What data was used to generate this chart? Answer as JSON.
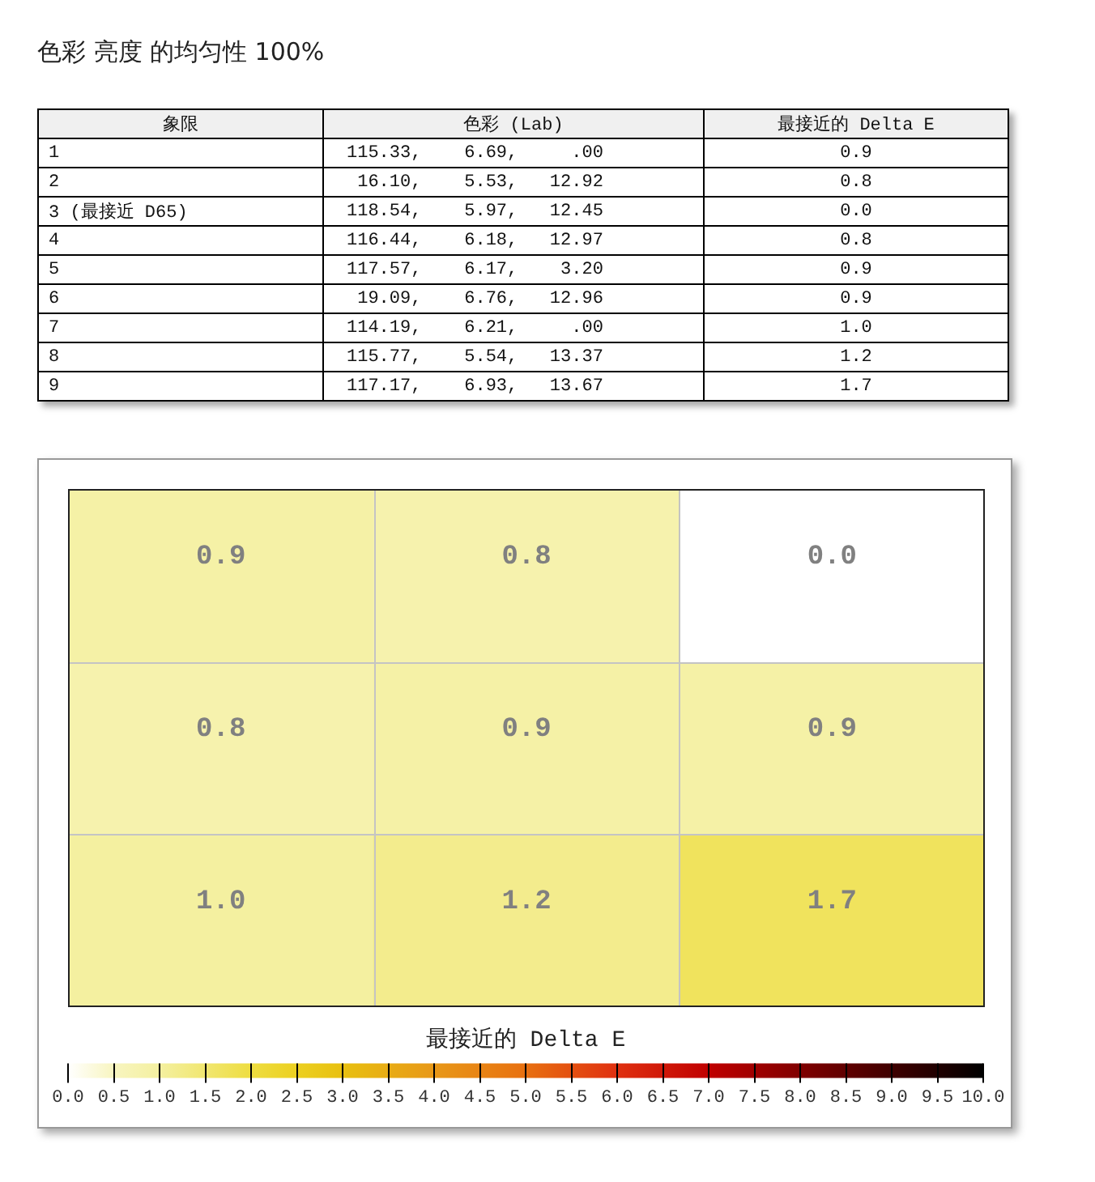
{
  "chart_data": [
    {
      "type": "other",
      "title": "色彩 亮度 的均匀性 100%",
      "annotations": [
        "象限",
        "色彩 (Lab)",
        "最接近的 Delta E",
        "1",
        "115.33,    6.69,     .00",
        "0.9",
        "2",
        " 16.10,    5.53,   12.92",
        "0.8",
        "3 (最接近 D65)",
        "118.54,    5.97,   12.45",
        "0.0",
        "4",
        "116.44,    6.18,   12.97",
        "0.8",
        "5",
        "117.57,    6.17,    3.20",
        "0.9",
        "6",
        " 19.09,    6.76,   12.96",
        "0.9",
        "7",
        "114.19,    6.21,     .00",
        "1.0",
        "8",
        "115.77,    5.54,   13.37",
        "1.2",
        "9",
        "117.17,    6.93,   13.67",
        "1.7"
      ]
    },
    {
      "type": "heatmap",
      "categories": [
        null,
        null,
        null
      ],
      "y_categories": [
        null,
        null,
        null
      ],
      "cells": [
        [
          0.9,
          0.8,
          0.0
        ],
        [
          0.8,
          0.9,
          0.9
        ],
        [
          1.0,
          1.2,
          1.7
        ]
      ],
      "cell_labels": [
        [
          "0.9",
          "0.8",
          "0.0"
        ],
        [
          "0.8",
          "0.9",
          "0.9"
        ],
        [
          "1.0",
          "1.2",
          "1.7"
        ]
      ],
      "clabel": "最接近的 Delta E",
      "clim": [
        0,
        10
      ],
      "cticks": [
        {
          "value": 0,
          "label": "0.0"
        },
        {
          "value": 0.5,
          "label": "0.5"
        },
        {
          "value": 1,
          "label": "1.0"
        },
        {
          "value": 1.5,
          "label": "1.5"
        },
        {
          "value": 2,
          "label": "2.0"
        },
        {
          "value": 2.5,
          "label": "2.5"
        },
        {
          "value": 3,
          "label": "3.0"
        },
        {
          "value": 3.5,
          "label": "3.5"
        },
        {
          "value": 4,
          "label": "4.0"
        },
        {
          "value": 4.5,
          "label": "4.5"
        },
        {
          "value": 5,
          "label": "5.0"
        },
        {
          "value": 5.5,
          "label": "5.5"
        },
        {
          "value": 6,
          "label": "6.0"
        },
        {
          "value": 6.5,
          "label": "6.5"
        },
        {
          "value": 7,
          "label": "7.0"
        },
        {
          "value": 7.5,
          "label": "7.5"
        },
        {
          "value": 8,
          "label": "8.0"
        },
        {
          "value": 8.5,
          "label": "8.5"
        },
        {
          "value": 9,
          "label": "9.0"
        },
        {
          "value": 9.5,
          "label": "9.5"
        },
        {
          "value": 10,
          "label": "10.0"
        }
      ],
      "grid": true
    }
  ]
}
